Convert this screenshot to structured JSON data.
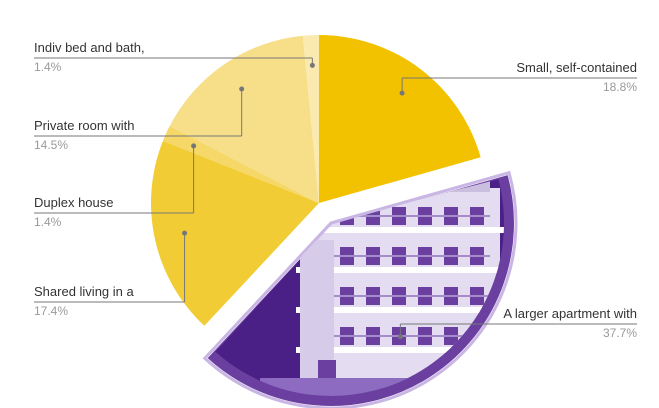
{
  "chart_data": {
    "type": "pie",
    "title": "",
    "slices": [
      {
        "label": "Small, self-contained",
        "value": 18.8,
        "value_label": "18.8%",
        "color": "#f2c200"
      },
      {
        "label": "A larger apartment with",
        "value": 37.7,
        "value_label": "37.7%",
        "color": "#6a3fa0"
      },
      {
        "label": "Shared living in a",
        "value": 17.4,
        "value_label": "17.4%",
        "color": "#f1cc35"
      },
      {
        "label": "Duplex house",
        "value": 1.4,
        "value_label": "1.4%",
        "color": "#f5d868"
      },
      {
        "label": "Private room with",
        "value": 14.5,
        "value_label": "14.5%",
        "color": "#f7df8a"
      },
      {
        "label": "Indiv bed and bath,",
        "value": 1.4,
        "value_label": "1.4%",
        "color": "#faeaaf"
      }
    ],
    "exploded_slice": "A larger apartment with",
    "exploded_slice_illustration": "apartment-building"
  }
}
